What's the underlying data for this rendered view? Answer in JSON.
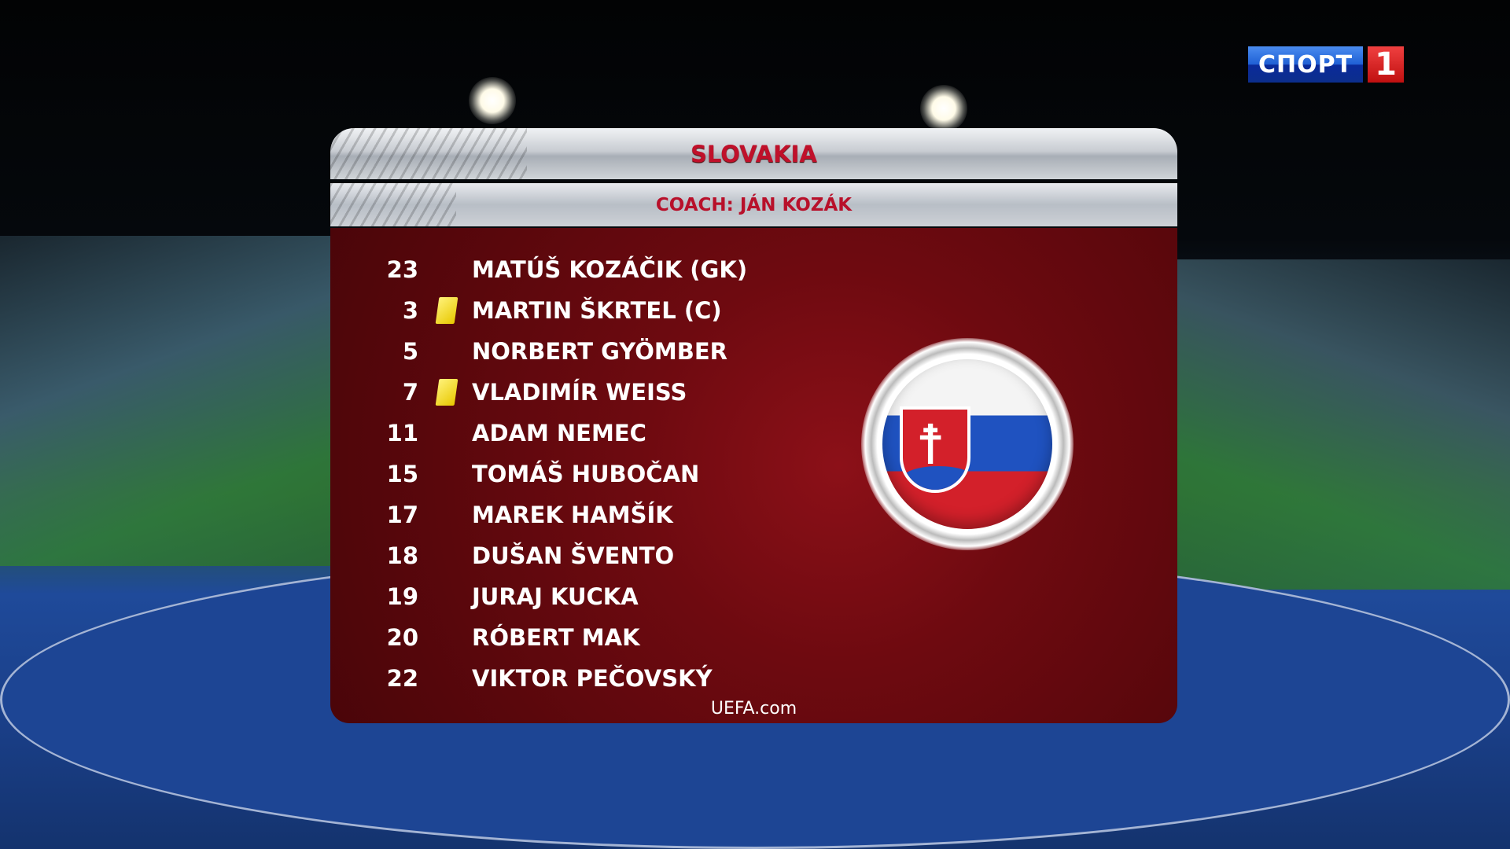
{
  "broadcaster": {
    "logo_text": "СПОРТ",
    "logo_number": "1"
  },
  "lineup": {
    "team": "SLOVAKIA",
    "coach": "COACH: JÁN KOZÁK",
    "players": [
      {
        "number": "23",
        "name": "MATÚŠ KOZÁČIK (GK)",
        "yellow_card": false
      },
      {
        "number": "3",
        "name": "MARTIN ŠKRTEL (C)",
        "yellow_card": true
      },
      {
        "number": "5",
        "name": "NORBERT GYÖMBER",
        "yellow_card": false
      },
      {
        "number": "7",
        "name": "VLADIMÍR WEISS",
        "yellow_card": true
      },
      {
        "number": "11",
        "name": "ADAM NEMEC",
        "yellow_card": false
      },
      {
        "number": "15",
        "name": "TOMÁŠ HUBOČAN",
        "yellow_card": false
      },
      {
        "number": "17",
        "name": "MAREK HAMŠÍK",
        "yellow_card": false
      },
      {
        "number": "18",
        "name": "DUŠAN ŠVENTO",
        "yellow_card": false
      },
      {
        "number": "19",
        "name": "JURAJ KUCKA",
        "yellow_card": false
      },
      {
        "number": "20",
        "name": "RÓBERT MAK",
        "yellow_card": false
      },
      {
        "number": "22",
        "name": "VIKTOR PEČOVSKÝ",
        "yellow_card": false
      }
    ],
    "source": "UEFA.com",
    "flag_icon": "slovakia-flag",
    "colors": {
      "panel": "#7a0c12",
      "title": "#c0102a",
      "card": "#f0d800"
    }
  }
}
